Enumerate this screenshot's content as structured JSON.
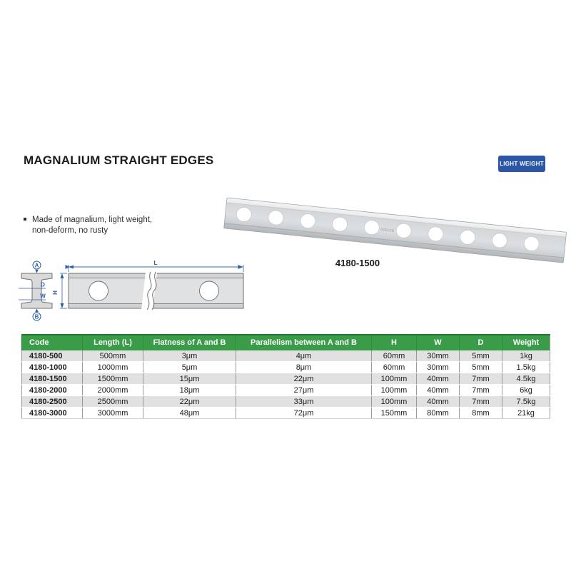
{
  "page": {
    "title": "MAGNALIUM STRAIGHT EDGES",
    "badge": "LIGHT WEIGHT",
    "features": [
      "Made of magnalium, light weight,",
      "non-deform, no rusty"
    ],
    "product_caption": "4180-1500",
    "product_logo": "INSIZE"
  },
  "diagram": {
    "labels": {
      "top_face": "A",
      "bottom_face": "B",
      "thickness": "D",
      "web_width": "W",
      "length": "L",
      "height": "H"
    }
  },
  "table": {
    "headers": [
      "Code",
      "Length (L)",
      "Flatness of A and B",
      "Parallelism between A and B",
      "H",
      "W",
      "D",
      "Weight"
    ],
    "rows": [
      [
        "4180-500",
        "500mm",
        "3μm",
        "4μm",
        "60mm",
        "30mm",
        "5mm",
        "1kg"
      ],
      [
        "4180-1000",
        "1000mm",
        "5μm",
        "8μm",
        "60mm",
        "30mm",
        "5mm",
        "1.5kg"
      ],
      [
        "4180-1500",
        "1500mm",
        "15μm",
        "22μm",
        "100mm",
        "40mm",
        "7mm",
        "4.5kg"
      ],
      [
        "4180-2000",
        "2000mm",
        "18μm",
        "27μm",
        "100mm",
        "40mm",
        "7mm",
        "6kg"
      ],
      [
        "4180-2500",
        "2500mm",
        "22μm",
        "33μm",
        "100mm",
        "40mm",
        "7mm",
        "7.5kg"
      ],
      [
        "4180-3000",
        "3000mm",
        "48μm",
        "72μm",
        "150mm",
        "80mm",
        "8mm",
        "21kg"
      ]
    ]
  },
  "colors": {
    "header_green": "#3a9c49",
    "header_green_dark": "#1f7c33",
    "badge_blue": "#2b57a6",
    "diagram_blue": "#2e5fa6",
    "alt_row_grey": "#e1e1e1"
  }
}
